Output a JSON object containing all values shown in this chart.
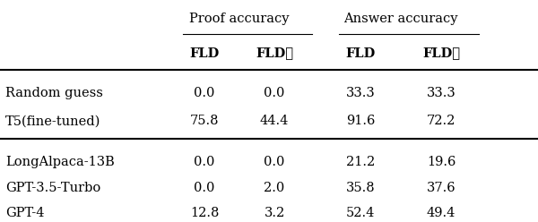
{
  "col_headers_top": [
    "Proof accuracy",
    "Answer accuracy"
  ],
  "col_headers_sub": [
    "FLD",
    "FLD★",
    "FLD",
    "FLD★"
  ],
  "rows_group1": [
    [
      "Random guess",
      "0.0",
      "0.0",
      "33.3",
      "33.3"
    ],
    [
      "T5(fine-tuned)",
      "75.8",
      "44.4",
      "91.6",
      "72.2"
    ]
  ],
  "rows_group2": [
    [
      "LongAlpaca-13B",
      "0.0",
      "0.0",
      "21.2",
      "19.6"
    ],
    [
      "GPT-3.5-Turbo",
      "0.0",
      "2.0",
      "35.8",
      "37.6"
    ],
    [
      "GPT-4",
      "12.8",
      "3.2",
      "52.4",
      "49.4"
    ]
  ],
  "background_color": "#ffffff",
  "text_color": "#000000",
  "font_size": 10.5
}
